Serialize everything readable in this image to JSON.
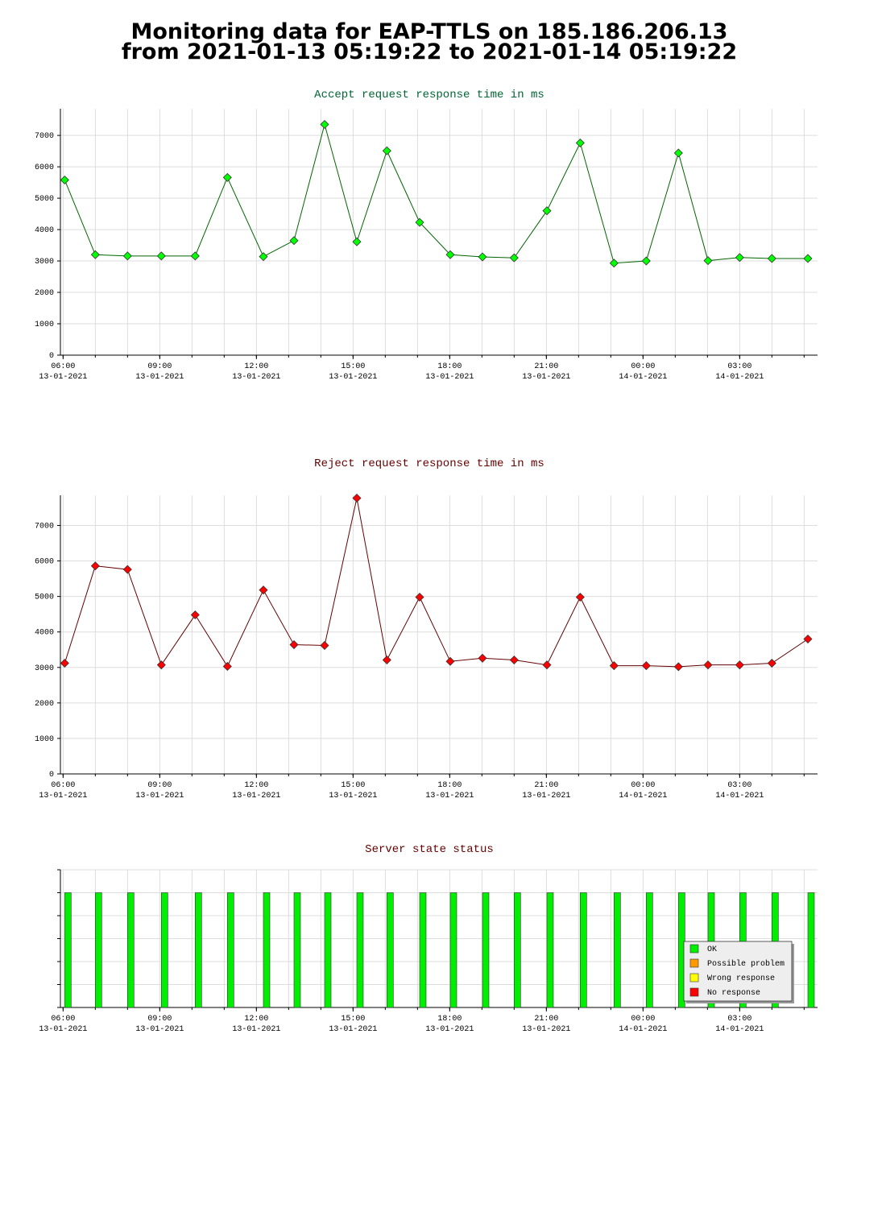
{
  "header": {
    "title_lines": [
      "Monitoring data for EAP-TTLS on 185.186.206.13",
      "from 2021-01-13 05:19:22 to 2021-01-14 05:19:22"
    ]
  },
  "chart_data": [
    {
      "type": "line",
      "title": "Accept request response time in ms",
      "title_color": "#006633",
      "x": [
        "2021-01-13T06:03",
        "2021-01-13T07:00",
        "2021-01-13T08:00",
        "2021-01-13T09:03",
        "2021-01-13T10:06",
        "2021-01-13T11:06",
        "2021-01-13T12:13",
        "2021-01-13T13:10",
        "2021-01-13T14:07",
        "2021-01-13T15:07",
        "2021-01-13T16:03",
        "2021-01-13T17:04",
        "2021-01-13T18:01",
        "2021-01-13T19:01",
        "2021-01-13T20:00",
        "2021-01-13T21:01",
        "2021-01-13T22:03",
        "2021-01-13T23:06",
        "2021-01-14T00:06",
        "2021-01-14T01:06",
        "2021-01-14T02:01",
        "2021-01-14T03:00",
        "2021-01-14T04:00",
        "2021-01-14T05:07"
      ],
      "series": [
        {
          "color": "#006600",
          "marker_color": "#00ff00",
          "values": [
            5580,
            3200,
            3160,
            3160,
            3160,
            5660,
            3140,
            3650,
            7350,
            3610,
            6510,
            4230,
            3200,
            3130,
            3100,
            4600,
            6760,
            2930,
            3000,
            6440,
            3010,
            3110,
            3080,
            3080
          ]
        }
      ],
      "xlim": [
        "2021-01-13T05:55",
        "2021-01-14T05:25"
      ],
      "xticks": [
        {
          "value": "2021-01-13T06:00",
          "label": "06:00",
          "date": "13-01-2021"
        },
        {
          "value": "2021-01-13T09:00",
          "label": "09:00",
          "date": "13-01-2021"
        },
        {
          "value": "2021-01-13T12:00",
          "label": "12:00",
          "date": "13-01-2021"
        },
        {
          "value": "2021-01-13T15:00",
          "label": "15:00",
          "date": "13-01-2021"
        },
        {
          "value": "2021-01-13T18:00",
          "label": "18:00",
          "date": "13-01-2021"
        },
        {
          "value": "2021-01-13T21:00",
          "label": "21:00",
          "date": "13-01-2021"
        },
        {
          "value": "2021-01-14T00:00",
          "label": "00:00",
          "date": "14-01-2021"
        },
        {
          "value": "2021-01-14T03:00",
          "label": "03:00",
          "date": "14-01-2021"
        }
      ],
      "xgrid": [
        "2021-01-13T06:00",
        "2021-01-13T07:00",
        "2021-01-13T08:00",
        "2021-01-13T09:00",
        "2021-01-13T10:00",
        "2021-01-13T11:00",
        "2021-01-13T12:00",
        "2021-01-13T13:00",
        "2021-01-13T14:00",
        "2021-01-13T15:00",
        "2021-01-13T16:00",
        "2021-01-13T17:00",
        "2021-01-13T18:00",
        "2021-01-13T19:00",
        "2021-01-13T20:00",
        "2021-01-13T21:00",
        "2021-01-13T22:00",
        "2021-01-13T23:00",
        "2021-01-14T00:00",
        "2021-01-14T01:00",
        "2021-01-14T02:00",
        "2021-01-14T03:00",
        "2021-01-14T04:00",
        "2021-01-14T05:00"
      ],
      "ylim": [
        0,
        7850
      ],
      "yticks": [
        0,
        1000,
        2000,
        3000,
        4000,
        5000,
        6000,
        7000
      ],
      "grid": true
    },
    {
      "type": "line",
      "title": "Reject request response time in ms",
      "title_color": "#660000",
      "x": [
        "2021-01-13T06:03",
        "2021-01-13T07:00",
        "2021-01-13T08:00",
        "2021-01-13T09:03",
        "2021-01-13T10:06",
        "2021-01-13T11:06",
        "2021-01-13T12:13",
        "2021-01-13T13:10",
        "2021-01-13T14:07",
        "2021-01-13T15:07",
        "2021-01-13T16:03",
        "2021-01-13T17:04",
        "2021-01-13T18:01",
        "2021-01-13T19:01",
        "2021-01-13T20:00",
        "2021-01-13T21:01",
        "2021-01-13T22:03",
        "2021-01-13T23:06",
        "2021-01-14T00:06",
        "2021-01-14T01:06",
        "2021-01-14T02:01",
        "2021-01-14T03:00",
        "2021-01-14T04:00",
        "2021-01-14T05:07"
      ],
      "series": [
        {
          "color": "#660000",
          "marker_color": "#ff0000",
          "values": [
            3120,
            5860,
            5760,
            3070,
            4480,
            3030,
            5180,
            3640,
            3620,
            7770,
            3210,
            4980,
            3170,
            3260,
            3210,
            3070,
            4980,
            3050,
            3050,
            3020,
            3070,
            3070,
            3120,
            3800
          ]
        }
      ],
      "xlim": [
        "2021-01-13T05:55",
        "2021-01-14T05:25"
      ],
      "xticks": [
        {
          "value": "2021-01-13T06:00",
          "label": "06:00",
          "date": "13-01-2021"
        },
        {
          "value": "2021-01-13T09:00",
          "label": "09:00",
          "date": "13-01-2021"
        },
        {
          "value": "2021-01-13T12:00",
          "label": "12:00",
          "date": "13-01-2021"
        },
        {
          "value": "2021-01-13T15:00",
          "label": "15:00",
          "date": "13-01-2021"
        },
        {
          "value": "2021-01-13T18:00",
          "label": "18:00",
          "date": "13-01-2021"
        },
        {
          "value": "2021-01-13T21:00",
          "label": "21:00",
          "date": "13-01-2021"
        },
        {
          "value": "2021-01-14T00:00",
          "label": "00:00",
          "date": "14-01-2021"
        },
        {
          "value": "2021-01-14T03:00",
          "label": "03:00",
          "date": "14-01-2021"
        }
      ],
      "xgrid": [
        "2021-01-13T06:00",
        "2021-01-13T07:00",
        "2021-01-13T08:00",
        "2021-01-13T09:00",
        "2021-01-13T10:00",
        "2021-01-13T11:00",
        "2021-01-13T12:00",
        "2021-01-13T13:00",
        "2021-01-13T14:00",
        "2021-01-13T15:00",
        "2021-01-13T16:00",
        "2021-01-13T17:00",
        "2021-01-13T18:00",
        "2021-01-13T19:00",
        "2021-01-13T20:00",
        "2021-01-13T21:00",
        "2021-01-13T22:00",
        "2021-01-13T23:00",
        "2021-01-14T00:00",
        "2021-01-14T01:00",
        "2021-01-14T02:00",
        "2021-01-14T03:00",
        "2021-01-14T04:00",
        "2021-01-14T05:00"
      ],
      "ylim": [
        0,
        7850
      ],
      "yticks": [
        0,
        1000,
        2000,
        3000,
        4000,
        5000,
        6000,
        7000
      ],
      "grid": true
    },
    {
      "type": "bar",
      "title": "Server state status",
      "title_color": "#660000",
      "x": [
        "2021-01-13T06:03",
        "2021-01-13T07:00",
        "2021-01-13T08:00",
        "2021-01-13T09:03",
        "2021-01-13T10:06",
        "2021-01-13T11:06",
        "2021-01-13T12:13",
        "2021-01-13T13:10",
        "2021-01-13T14:07",
        "2021-01-13T15:07",
        "2021-01-13T16:03",
        "2021-01-13T17:04",
        "2021-01-13T18:01",
        "2021-01-13T19:01",
        "2021-01-13T20:00",
        "2021-01-13T21:01",
        "2021-01-13T22:03",
        "2021-01-13T23:06",
        "2021-01-14T00:06",
        "2021-01-14T01:06",
        "2021-01-14T02:01",
        "2021-01-14T03:00",
        "2021-01-14T04:00",
        "2021-01-14T05:07"
      ],
      "series": [
        {
          "name": "OK",
          "color": "#00ee00",
          "values": [
            1,
            1,
            1,
            1,
            1,
            1,
            1,
            1,
            1,
            1,
            1,
            1,
            1,
            1,
            1,
            1,
            1,
            1,
            1,
            1,
            1,
            1,
            1,
            1
          ]
        },
        {
          "name": "Possible problem",
          "color": "#ff9900",
          "values": [
            0,
            0,
            0,
            0,
            0,
            0,
            0,
            0,
            0,
            0,
            0,
            0,
            0,
            0,
            0,
            0,
            0,
            0,
            0,
            0,
            0,
            0,
            0,
            0
          ]
        },
        {
          "name": "Wrong response",
          "color": "#ffff00",
          "values": [
            0,
            0,
            0,
            0,
            0,
            0,
            0,
            0,
            0,
            0,
            0,
            0,
            0,
            0,
            0,
            0,
            0,
            0,
            0,
            0,
            0,
            0,
            0,
            0
          ]
        },
        {
          "name": "No response",
          "color": "#ff0000",
          "values": [
            0,
            0,
            0,
            0,
            0,
            0,
            0,
            0,
            0,
            0,
            0,
            0,
            0,
            0,
            0,
            0,
            0,
            0,
            0,
            0,
            0,
            0,
            0,
            0
          ]
        }
      ],
      "xlim": [
        "2021-01-13T05:55",
        "2021-01-14T05:25"
      ],
      "xticks": [
        {
          "value": "2021-01-13T06:00",
          "label": "06:00",
          "date": "13-01-2021"
        },
        {
          "value": "2021-01-13T09:00",
          "label": "09:00",
          "date": "13-01-2021"
        },
        {
          "value": "2021-01-13T12:00",
          "label": "12:00",
          "date": "13-01-2021"
        },
        {
          "value": "2021-01-13T15:00",
          "label": "15:00",
          "date": "13-01-2021"
        },
        {
          "value": "2021-01-13T18:00",
          "label": "18:00",
          "date": "13-01-2021"
        },
        {
          "value": "2021-01-13T21:00",
          "label": "21:00",
          "date": "13-01-2021"
        },
        {
          "value": "2021-01-14T00:00",
          "label": "00:00",
          "date": "14-01-2021"
        },
        {
          "value": "2021-01-14T03:00",
          "label": "03:00",
          "date": "14-01-2021"
        }
      ],
      "xgrid": [
        "2021-01-13T06:00",
        "2021-01-13T07:00",
        "2021-01-13T08:00",
        "2021-01-13T09:00",
        "2021-01-13T10:00",
        "2021-01-13T11:00",
        "2021-01-13T12:00",
        "2021-01-13T13:00",
        "2021-01-13T14:00",
        "2021-01-13T15:00",
        "2021-01-13T16:00",
        "2021-01-13T17:00",
        "2021-01-13T18:00",
        "2021-01-13T19:00",
        "2021-01-13T20:00",
        "2021-01-13T21:00",
        "2021-01-13T22:00",
        "2021-01-13T23:00",
        "2021-01-14T00:00",
        "2021-01-14T01:00",
        "2021-01-14T02:00",
        "2021-01-14T03:00",
        "2021-01-14T04:00",
        "2021-01-14T05:00"
      ],
      "ylim": [
        0,
        1.2
      ],
      "yticks": [
        0,
        0.2,
        0.4,
        0.6,
        0.8,
        1,
        1.2
      ],
      "grid": true,
      "legend": "lower right"
    }
  ]
}
